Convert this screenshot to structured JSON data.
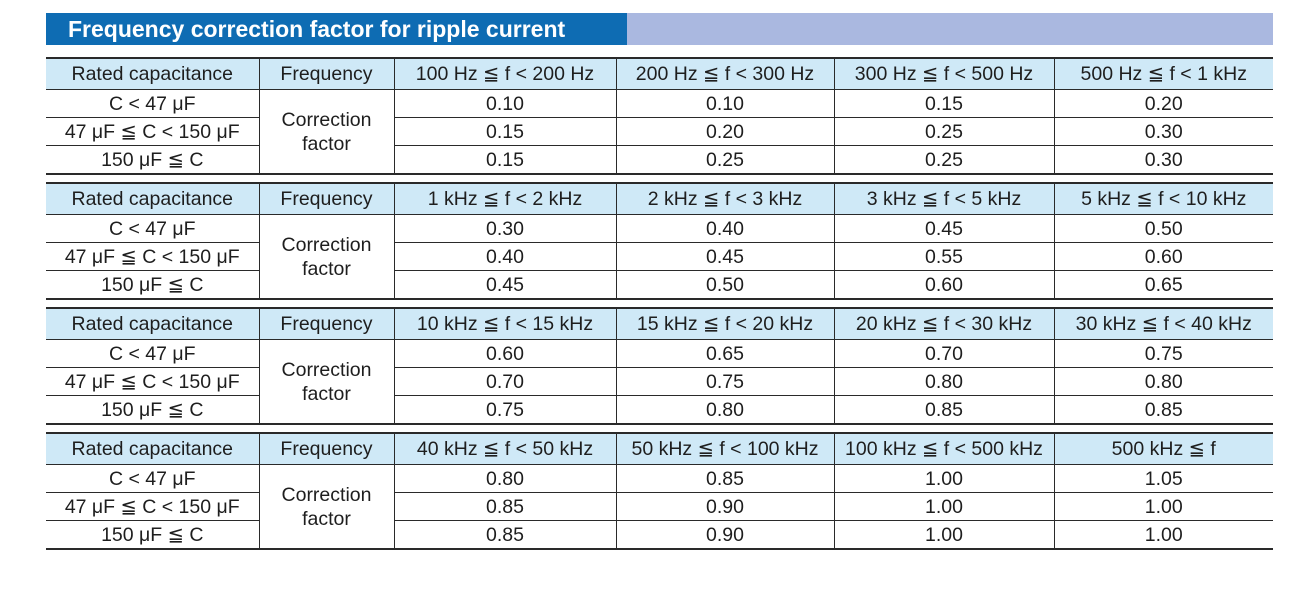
{
  "title": "Frequency correction factor for ripple current",
  "colors": {
    "title_bg": "#0e6cb3",
    "title_bar_bg": "#aab8e0",
    "header_bg": "#cfe9f7"
  },
  "labels": {
    "rated_capacitance": "Rated capacitance",
    "frequency": "Frequency",
    "correction": "Correction",
    "factor": "factor"
  },
  "blocks": [
    {
      "frequencies": [
        "100 Hz ≦ f < 200 Hz",
        "200 Hz ≦ f < 300 Hz",
        "300 Hz ≦ f < 500 Hz",
        "500 Hz ≦ f < 1 kHz"
      ],
      "rows": [
        {
          "capacitance": "C < 47 μF",
          "values": [
            "0.10",
            "0.10",
            "0.15",
            "0.20"
          ]
        },
        {
          "capacitance": "47 μF ≦ C < 150 μF",
          "values": [
            "0.15",
            "0.20",
            "0.25",
            "0.30"
          ]
        },
        {
          "capacitance": "150 μF ≦ C",
          "values": [
            "0.15",
            "0.25",
            "0.25",
            "0.30"
          ]
        }
      ]
    },
    {
      "frequencies": [
        "1 kHz ≦ f < 2 kHz",
        "2 kHz ≦ f < 3 kHz",
        "3 kHz ≦ f < 5 kHz",
        "5 kHz ≦ f < 10 kHz"
      ],
      "rows": [
        {
          "capacitance": "C < 47 μF",
          "values": [
            "0.30",
            "0.40",
            "0.45",
            "0.50"
          ]
        },
        {
          "capacitance": "47 μF ≦ C < 150 μF",
          "values": [
            "0.40",
            "0.45",
            "0.55",
            "0.60"
          ]
        },
        {
          "capacitance": "150 μF ≦ C",
          "values": [
            "0.45",
            "0.50",
            "0.60",
            "0.65"
          ]
        }
      ]
    },
    {
      "frequencies": [
        "10 kHz ≦ f < 15 kHz",
        "15 kHz ≦ f < 20 kHz",
        "20 kHz ≦ f < 30 kHz",
        "30 kHz ≦ f < 40 kHz"
      ],
      "rows": [
        {
          "capacitance": "C < 47 μF",
          "values": [
            "0.60",
            "0.65",
            "0.70",
            "0.75"
          ]
        },
        {
          "capacitance": "47 μF ≦ C < 150 μF",
          "values": [
            "0.70",
            "0.75",
            "0.80",
            "0.80"
          ]
        },
        {
          "capacitance": "150 μF ≦ C",
          "values": [
            "0.75",
            "0.80",
            "0.85",
            "0.85"
          ]
        }
      ]
    },
    {
      "frequencies": [
        "40 kHz ≦ f < 50 kHz",
        "50 kHz ≦ f < 100 kHz",
        "100 kHz ≦ f < 500 kHz",
        "500 kHz ≦ f"
      ],
      "rows": [
        {
          "capacitance": "C < 47 μF",
          "values": [
            "0.80",
            "0.85",
            "1.00",
            "1.05"
          ]
        },
        {
          "capacitance": "47 μF ≦ C < 150 μF",
          "values": [
            "0.85",
            "0.90",
            "1.00",
            "1.00"
          ]
        },
        {
          "capacitance": "150 μF ≦ C",
          "values": [
            "0.85",
            "0.90",
            "1.00",
            "1.00"
          ]
        }
      ]
    }
  ]
}
